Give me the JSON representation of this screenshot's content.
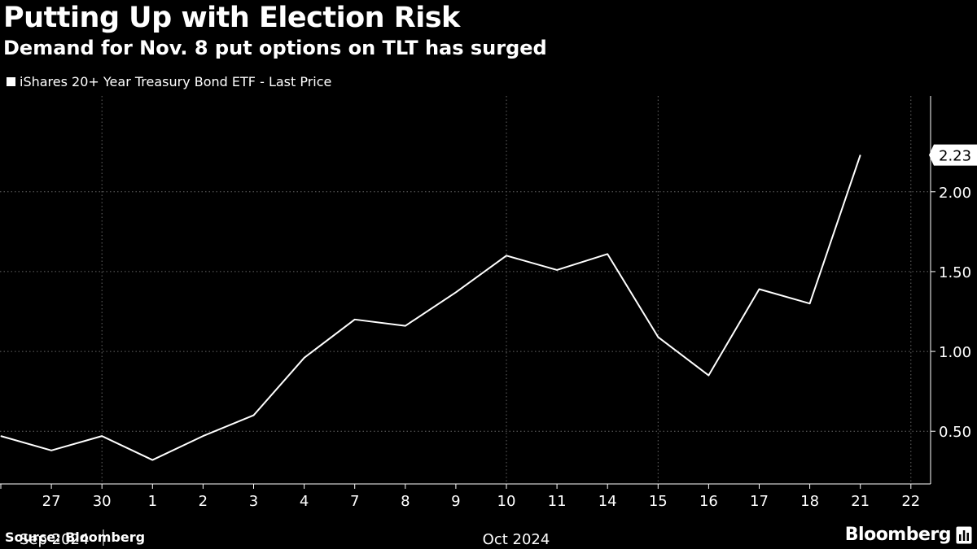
{
  "header": {
    "title": "Putting Up with Election Risk",
    "subtitle": "Demand for Nov. 8 put options on TLT has surged"
  },
  "legend": {
    "label": "iShares 20+ Year Treasury Bond ETF - Last Price"
  },
  "footer": {
    "source": "Source: Bloomberg",
    "brand": "Bloomberg"
  },
  "colors": {
    "background": "#000000",
    "line": "#ffffff",
    "grid": "#666666"
  },
  "chart_data": {
    "type": "line",
    "title": "Putting Up with Election Risk",
    "subtitle": "Demand for Nov. 8 put options on TLT has surged",
    "xlabel": "",
    "ylabel": "",
    "series": [
      {
        "name": "iShares 20+ Year Treasury Bond ETF - Last Price",
        "x": [
          "26",
          "27",
          "30",
          "1",
          "2",
          "3",
          "4",
          "7",
          "8",
          "9",
          "10",
          "11",
          "14",
          "15",
          "16",
          "17",
          "18",
          "21"
        ],
        "values": [
          0.47,
          0.38,
          0.47,
          0.32,
          0.47,
          0.6,
          0.96,
          1.2,
          1.16,
          1.37,
          1.6,
          1.51,
          1.61,
          1.09,
          0.85,
          1.39,
          1.3,
          2.23
        ]
      }
    ],
    "x_ticks": [
      "27",
      "30",
      "1",
      "2",
      "3",
      "4",
      "7",
      "8",
      "9",
      "10",
      "11",
      "14",
      "15",
      "16",
      "17",
      "18",
      "21",
      "22"
    ],
    "period_labels": [
      "Sep 2024",
      "Oct 2024"
    ],
    "y_ticks": [
      0.5,
      1.0,
      1.5,
      2.0
    ],
    "y_tick_labels": [
      "0.50",
      "1.00",
      "1.50",
      "2.00"
    ],
    "ylim": [
      0.17,
      2.6
    ],
    "last_value_label": "2.23",
    "grid": true,
    "legend_position": "top-left"
  }
}
